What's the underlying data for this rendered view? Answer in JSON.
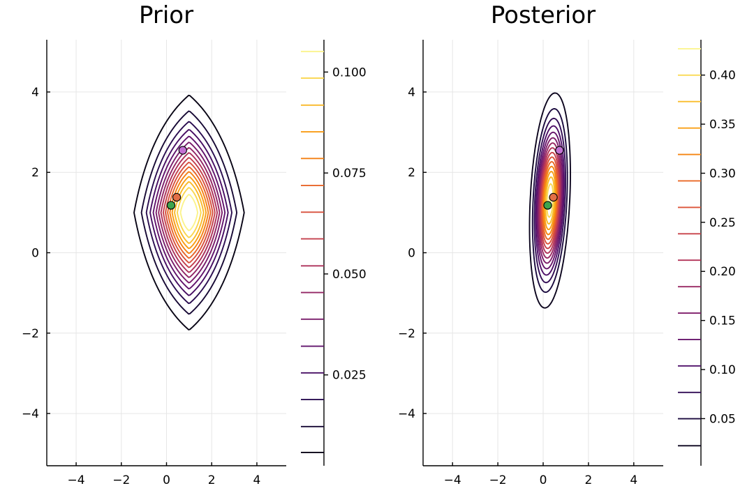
{
  "colors": {
    "background": "#ffffff",
    "grid": "#e6e6e6",
    "prior_point": "#c271d2",
    "map_point": "#e26f46",
    "true_point": "#3da44d",
    "marker_edge": "#000000"
  },
  "colormap": "inferno",
  "chart_data": [
    {
      "type": "contour",
      "title": "Prior",
      "xlabel": "",
      "ylabel": "",
      "xlim": [
        -5.3,
        5.3
      ],
      "ylim": [
        -5.3,
        5.3
      ],
      "xticks": [
        -4,
        -2,
        0,
        2,
        4
      ],
      "yticks": [
        -4,
        -2,
        0,
        2,
        4
      ],
      "grid": true,
      "density": {
        "mean": [
          1,
          1
        ],
        "sd": [
          1,
          1.2
        ],
        "shape": "heavy-tailed",
        "peak": 0.113
      },
      "levels": [
        0.0058,
        0.0122,
        0.0189,
        0.0255,
        0.0321,
        0.0388,
        0.0454,
        0.052,
        0.0587,
        0.0653,
        0.0719,
        0.0786,
        0.0852,
        0.0918,
        0.0985,
        0.1051
      ],
      "colorbar": {
        "range": [
          0.0025,
          0.108
        ],
        "ticks": [
          0.025,
          0.05,
          0.075,
          0.1
        ],
        "tick_labels": [
          "0.025",
          "0.050",
          "0.075",
          "0.100"
        ]
      },
      "points": [
        {
          "x": 0.72,
          "y": 2.55,
          "color": "#c271d2"
        },
        {
          "x": 0.45,
          "y": 1.38,
          "color": "#e26f46"
        },
        {
          "x": 0.2,
          "y": 1.18,
          "color": "#3da44d"
        }
      ]
    },
    {
      "type": "contour",
      "title": "Posterior",
      "xlabel": "",
      "ylabel": "",
      "xlim": [
        -5.3,
        5.3
      ],
      "ylim": [
        -5.3,
        5.3
      ],
      "xticks": [
        -4,
        -2,
        0,
        2,
        4
      ],
      "yticks": [
        -4,
        -2,
        0,
        2,
        4
      ],
      "grid": true,
      "density": {
        "mean": [
          0.3,
          1.3
        ],
        "sd": [
          0.37,
          1.1
        ],
        "rho": 0.25,
        "shape": "gaussian",
        "peak": 0.43
      },
      "levels": [
        0.0224,
        0.0499,
        0.0767,
        0.1037,
        0.1306,
        0.1575,
        0.1844,
        0.2114,
        0.2383,
        0.2652,
        0.2922,
        0.3191,
        0.346,
        0.373,
        0.3999,
        0.4268
      ],
      "colorbar": {
        "range": [
          0.002,
          0.436
        ],
        "ticks": [
          0.05,
          0.1,
          0.15,
          0.2,
          0.25,
          0.3,
          0.35,
          0.4
        ],
        "tick_labels": [
          "0.05",
          "0.10",
          "0.15",
          "0.20",
          "0.25",
          "0.30",
          "0.35",
          "0.40"
        ]
      },
      "points": [
        {
          "x": 0.72,
          "y": 2.55,
          "color": "#c271d2"
        },
        {
          "x": 0.45,
          "y": 1.38,
          "color": "#e26f46"
        },
        {
          "x": 0.2,
          "y": 1.18,
          "color": "#3da44d"
        }
      ]
    }
  ]
}
